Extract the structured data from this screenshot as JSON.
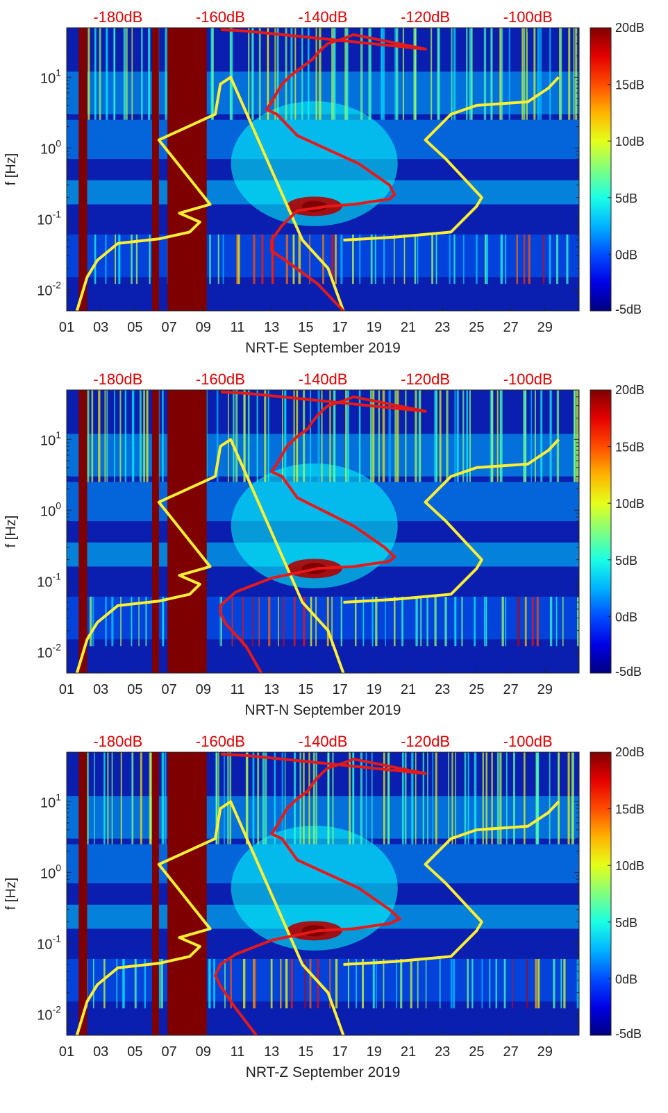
{
  "colors": {
    "top_axis_text": "#e00000",
    "yellow_curve": "#ffef33",
    "red_curve": "#e61919",
    "saturated": "#7f0000",
    "background": "#0a1fb0"
  },
  "shared": {
    "ylabel": "f [Hz]",
    "top_ticks": [
      "-180dB",
      "-160dB",
      "-140dB",
      "-120dB",
      "-100dB"
    ],
    "x_ticks": [
      "01",
      "03",
      "05",
      "07",
      "09",
      "11",
      "13",
      "15",
      "17",
      "19",
      "21",
      "23",
      "25",
      "27",
      "29"
    ],
    "y_ticks": [
      {
        "base": "10",
        "exp": "1",
        "value": 10
      },
      {
        "base": "10",
        "exp": "0",
        "value": 1
      },
      {
        "base": "10",
        "exp": "-1",
        "value": 0.1
      },
      {
        "base": "10",
        "exp": "-2",
        "value": 0.01
      }
    ],
    "colorbar": {
      "ticks": [
        "20dB",
        "15dB",
        "10dB",
        "5dB",
        "0dB",
        "-5dB"
      ],
      "range": [
        -5,
        20
      ],
      "colormap": "jet"
    }
  },
  "chart_data": [
    {
      "type": "heatmap",
      "xlabel": "NRT-E September 2019",
      "ylabel": "f [Hz]",
      "x_range_days": [
        1,
        31
      ],
      "y_range_hz": [
        0.005,
        50
      ],
      "y_scale": "log",
      "top_axis_range_db": [
        -190,
        -90
      ],
      "saturated_days": [
        [
          1.7,
          2.2
        ],
        [
          6.0,
          6.4
        ],
        [
          6.9,
          9.2
        ]
      ],
      "yellow_curve": {
        "db": [
          -188,
          -186,
          -184,
          -180,
          -172,
          -166,
          -164,
          -168,
          -162,
          -172,
          -161,
          -160,
          -158,
          -144,
          -139,
          -136
        ],
        "hz": [
          0.005,
          0.015,
          0.026,
          0.045,
          0.052,
          0.065,
          0.09,
          0.12,
          0.16,
          1.3,
          3,
          8,
          10,
          0.05,
          0.02,
          0.005
        ]
      },
      "yellow_curve2": {
        "db": [
          -136,
          -126,
          -115,
          -110,
          -109,
          -116,
          -120,
          -115,
          -110,
          -100,
          -96,
          -94
        ],
        "hz": [
          0.05,
          0.055,
          0.065,
          0.15,
          0.2,
          0.7,
          1.3,
          3,
          4,
          4.5,
          7,
          10
        ]
      },
      "red_curve": {
        "db": [
          -136,
          -141,
          -147,
          -150,
          -150,
          -148,
          -145,
          -139,
          -134,
          -127,
          -126,
          -127,
          -133,
          -145,
          -149,
          -151,
          -150,
          -149,
          -148,
          -146,
          -144,
          -142,
          -141,
          -140,
          -139,
          -136,
          -134,
          -120,
          -155,
          -160
        ],
        "hz": [
          0.005,
          0.012,
          0.025,
          0.035,
          0.05,
          0.08,
          0.13,
          0.15,
          0.16,
          0.19,
          0.22,
          0.3,
          0.6,
          1.5,
          3,
          3.5,
          4.5,
          6,
          8,
          11,
          14,
          18,
          22,
          26,
          30,
          35,
          40,
          25,
          45,
          47
        ]
      }
    },
    {
      "type": "heatmap",
      "xlabel": "NRT-N September 2019",
      "ylabel": "f [Hz]",
      "x_range_days": [
        1,
        31
      ],
      "y_range_hz": [
        0.005,
        50
      ],
      "y_scale": "log",
      "top_axis_range_db": [
        -190,
        -90
      ],
      "saturated_days": [
        [
          1.7,
          2.2
        ],
        [
          6.0,
          6.4
        ],
        [
          6.9,
          9.2
        ]
      ],
      "yellow_curve": {
        "db": [
          -188,
          -186,
          -184,
          -180,
          -172,
          -166,
          -164,
          -168,
          -162,
          -172,
          -161,
          -160,
          -158,
          -144,
          -139,
          -136
        ],
        "hz": [
          0.005,
          0.015,
          0.026,
          0.045,
          0.052,
          0.065,
          0.09,
          0.12,
          0.16,
          1.3,
          3,
          8,
          10,
          0.05,
          0.02,
          0.005
        ]
      },
      "yellow_curve2": {
        "db": [
          -136,
          -126,
          -115,
          -110,
          -109,
          -116,
          -120,
          -115,
          -110,
          -100,
          -96,
          -94
        ],
        "hz": [
          0.05,
          0.055,
          0.065,
          0.15,
          0.2,
          0.7,
          1.3,
          3,
          4,
          4.5,
          7,
          10
        ]
      },
      "red_curve": {
        "db": [
          -152,
          -155,
          -159,
          -160,
          -160,
          -157,
          -150,
          -141,
          -134,
          -127,
          -126,
          -128,
          -134,
          -145,
          -148,
          -150,
          -149,
          -148,
          -147,
          -145,
          -143,
          -142,
          -141,
          -140,
          -139,
          -136,
          -134,
          -120,
          -155,
          -160
        ],
        "hz": [
          0.005,
          0.012,
          0.025,
          0.035,
          0.045,
          0.07,
          0.11,
          0.15,
          0.16,
          0.19,
          0.22,
          0.3,
          0.6,
          1.5,
          3,
          3.5,
          4.5,
          6,
          8,
          11,
          14,
          18,
          22,
          26,
          30,
          35,
          40,
          25,
          45,
          47
        ]
      }
    },
    {
      "type": "heatmap",
      "xlabel": "NRT-Z September 2019",
      "ylabel": "f [Hz]",
      "x_range_days": [
        1,
        31
      ],
      "y_range_hz": [
        0.005,
        50
      ],
      "y_scale": "log",
      "top_axis_range_db": [
        -190,
        -90
      ],
      "saturated_days": [
        [
          1.7,
          2.2
        ],
        [
          6.0,
          6.4
        ],
        [
          6.9,
          9.2
        ]
      ],
      "yellow_curve": {
        "db": [
          -188,
          -186,
          -184,
          -180,
          -172,
          -166,
          -164,
          -168,
          -162,
          -172,
          -161,
          -160,
          -158,
          -144,
          -139,
          -136
        ],
        "hz": [
          0.005,
          0.015,
          0.026,
          0.045,
          0.052,
          0.065,
          0.09,
          0.12,
          0.16,
          1.3,
          3,
          8,
          10,
          0.05,
          0.02,
          0.005
        ]
      },
      "yellow_curve2": {
        "db": [
          -136,
          -126,
          -115,
          -110,
          -109,
          -116,
          -120,
          -115,
          -110,
          -100,
          -96,
          -94
        ],
        "hz": [
          0.05,
          0.055,
          0.065,
          0.15,
          0.2,
          0.7,
          1.3,
          3,
          4,
          4.5,
          7,
          10
        ]
      },
      "red_curve": {
        "db": [
          -153,
          -157,
          -160,
          -161,
          -160,
          -157,
          -150,
          -141,
          -134,
          -127,
          -125,
          -127,
          -133,
          -145,
          -148,
          -150,
          -149,
          -148,
          -147,
          -145,
          -143,
          -142,
          -141,
          -140,
          -139,
          -136,
          -134,
          -120,
          -155,
          -160
        ],
        "hz": [
          0.005,
          0.012,
          0.025,
          0.035,
          0.05,
          0.07,
          0.11,
          0.15,
          0.16,
          0.19,
          0.22,
          0.3,
          0.6,
          1.5,
          3,
          3.5,
          4.5,
          6,
          8,
          11,
          14,
          18,
          22,
          26,
          30,
          35,
          40,
          25,
          45,
          47
        ]
      }
    }
  ]
}
